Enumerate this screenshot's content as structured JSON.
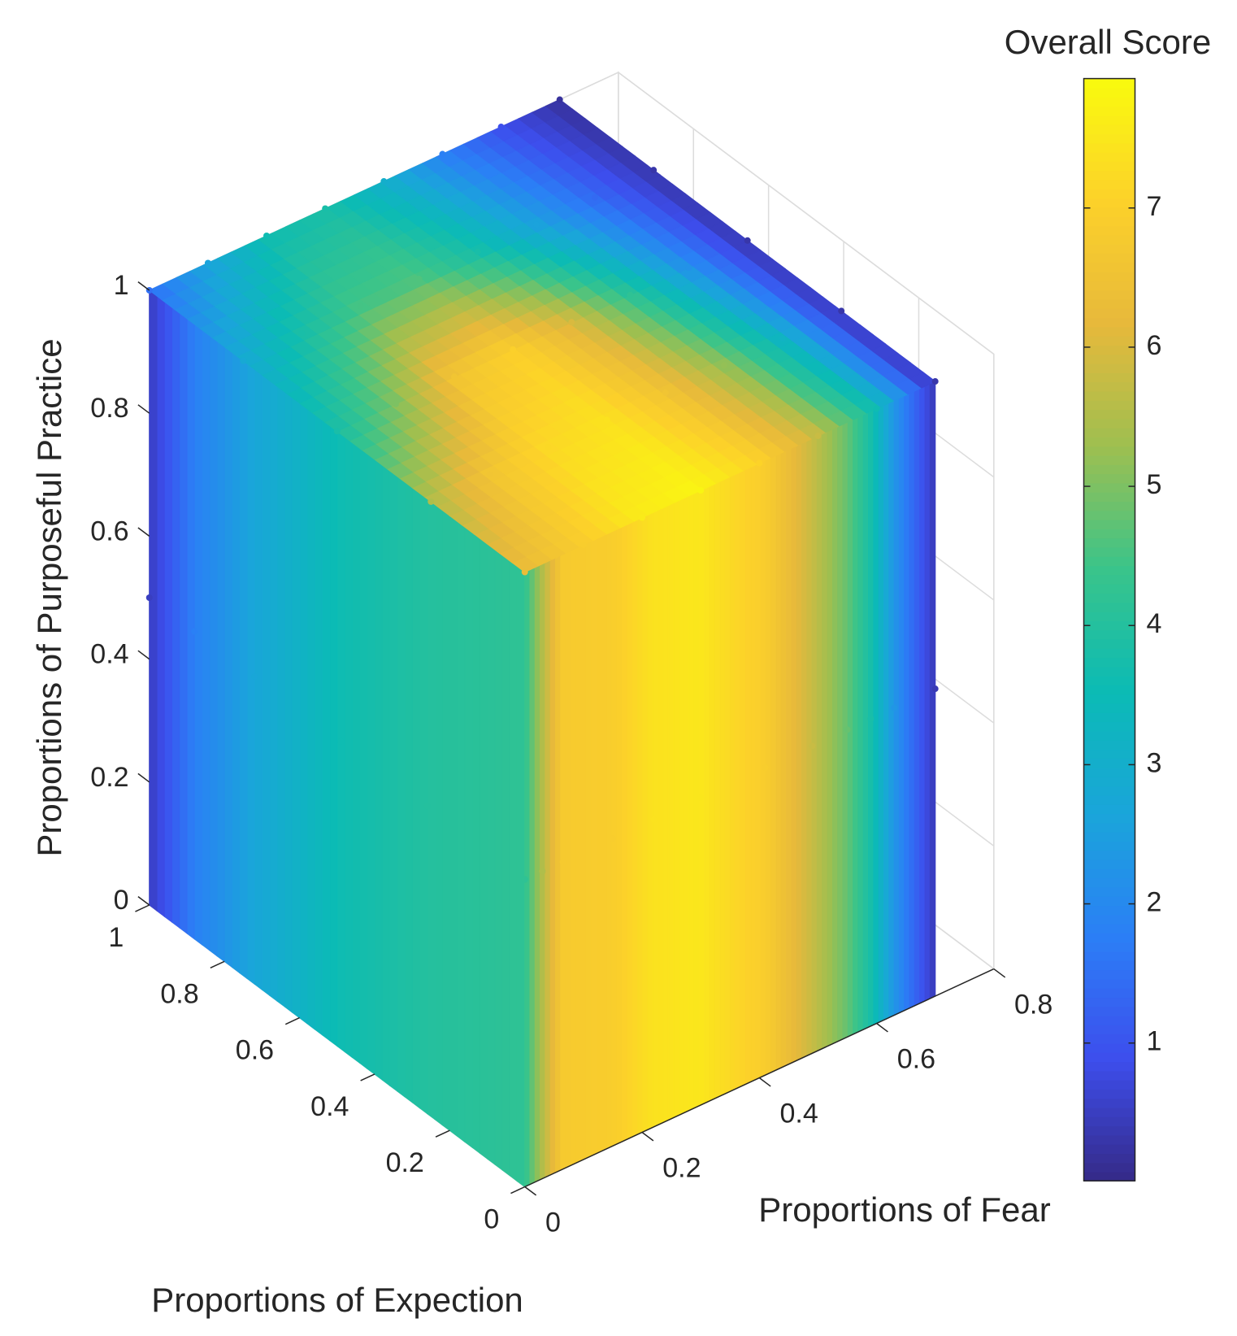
{
  "chart_data": {
    "type": "scatter3",
    "x_label": "Proportions of Fear",
    "y_label": "Proportions of Expection",
    "z_label": "Proportions of Purposeful Practice",
    "colorbar_label": "Overall Score",
    "xlim": [
      0,
      0.8
    ],
    "xticks": [
      0,
      0.2,
      0.4,
      0.6,
      0.8
    ],
    "ylim": [
      0,
      1
    ],
    "yticks": [
      0,
      0.2,
      0.4,
      0.6,
      0.8,
      1
    ],
    "zlim": [
      0,
      1
    ],
    "zticks": [
      0,
      0.2,
      0.4,
      0.6,
      0.8,
      1
    ],
    "clim": [
      0.01,
      7.93
    ],
    "cticks": [
      1,
      2,
      3,
      4,
      5,
      6,
      7
    ],
    "colormap": [
      "#352a87",
      "#3d4eed",
      "#2b7ff6",
      "#1aa5da",
      "#0bbbb5",
      "#3ac48a",
      "#9ebf50",
      "#e7b93b",
      "#fcd12a",
      "#f9fb0e"
    ],
    "grid": true,
    "front_face": {
      "x": [
        0,
        0.03,
        0.065,
        0.15,
        0.22,
        0.3,
        0.41,
        0.49,
        0.55,
        0.59,
        0.63,
        0.7
      ],
      "values": [
        4.2,
        5.5,
        6.8,
        6.9,
        7.4,
        7.5,
        6.9,
        5.8,
        4.8,
        3.8,
        2.3,
        0.4
      ]
    },
    "left_face": {
      "y": [
        0,
        0.26,
        0.49,
        0.72,
        0.88,
        1
      ],
      "values": [
        4.2,
        4.0,
        3.6,
        2.7,
        1.8,
        0.5
      ]
    },
    "top_face": {
      "x": [
        0,
        0.1,
        0.2,
        0.3,
        0.4,
        0.5,
        0.6,
        0.7
      ],
      "y": [
        0,
        0.25,
        0.5,
        0.75,
        1
      ],
      "values": [
        [
          6.3,
          6.9,
          7.6,
          7.8,
          7.1,
          5.8,
          3.6,
          0.3
        ],
        [
          5.5,
          6.6,
          7.2,
          7.4,
          6.6,
          5.2,
          3.2,
          0.3
        ],
        [
          3.8,
          5.0,
          6.6,
          7.0,
          6.0,
          4.2,
          2.2,
          0.3
        ],
        [
          2.8,
          3.8,
          4.5,
          4.6,
          3.8,
          2.6,
          1.4,
          0.3
        ],
        [
          1.5,
          2.6,
          3.6,
          3.8,
          3.0,
          1.8,
          0.9,
          0.2
        ]
      ]
    }
  }
}
